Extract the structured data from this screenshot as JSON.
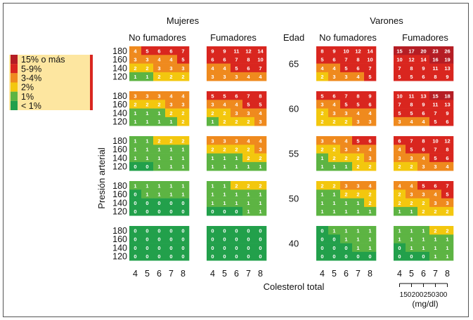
{
  "title_women": "Mujeres",
  "title_men": "Varones",
  "col_no_smoke": "No fumadores",
  "col_smoke": "Fumadores",
  "col_age": "Edad",
  "ylabel": "Presión arterial",
  "xlabel": "Colesterol total",
  "mgdl_unit": "(mg/dl)",
  "mgdl_ticks": [
    "150",
    "200",
    "250",
    "300"
  ],
  "legend": [
    {
      "label": "15% o más",
      "color": "#b51d24"
    },
    {
      "label": "5-9%",
      "color": "#d9261f"
    },
    {
      "label": "3-4%",
      "color": "#ef8a1e"
    },
    {
      "label": "2%",
      "color": "#f3c70e"
    },
    {
      "label": "1%",
      "color": "#5db443"
    },
    {
      "label": "< 1%",
      "color": "#22a04b"
    }
  ],
  "chart_data": {
    "type": "heatmap",
    "x": [
      "4",
      "5",
      "6",
      "7",
      "8"
    ],
    "y": [
      "180",
      "160",
      "140",
      "120"
    ],
    "ages": [
      "65",
      "60",
      "55",
      "50",
      "40"
    ],
    "panels": {
      "women_nonsmoker": [
        [
          [
            4,
            5,
            6,
            6,
            7
          ],
          [
            3,
            3,
            4,
            4,
            5
          ],
          [
            2,
            2,
            3,
            3,
            3
          ],
          [
            1,
            1,
            2,
            2,
            2
          ]
        ],
        [
          [
            3,
            3,
            3,
            4,
            4
          ],
          [
            2,
            2,
            2,
            3,
            3
          ],
          [
            1,
            1,
            1,
            2,
            2
          ],
          [
            1,
            1,
            1,
            1,
            2
          ]
        ],
        [
          [
            1,
            1,
            2,
            2,
            2
          ],
          [
            1,
            1,
            1,
            1,
            1
          ],
          [
            1,
            1,
            1,
            1,
            1
          ],
          [
            0,
            0,
            1,
            1,
            1
          ]
        ],
        [
          [
            1,
            1,
            1,
            1,
            1
          ],
          [
            0,
            1,
            1,
            1,
            1
          ],
          [
            0,
            0,
            0,
            0,
            0
          ],
          [
            0,
            0,
            0,
            0,
            0
          ]
        ],
        [
          [
            0,
            0,
            0,
            0,
            0
          ],
          [
            0,
            0,
            0,
            0,
            0
          ],
          [
            0,
            0,
            0,
            0,
            0
          ],
          [
            0,
            0,
            0,
            0,
            0
          ]
        ]
      ],
      "women_smoker": [
        [
          [
            9,
            9,
            11,
            12,
            14
          ],
          [
            6,
            6,
            7,
            8,
            10
          ],
          [
            4,
            4,
            5,
            6,
            7
          ],
          [
            3,
            3,
            3,
            4,
            4
          ]
        ],
        [
          [
            5,
            5,
            6,
            7,
            8
          ],
          [
            3,
            4,
            4,
            5,
            5
          ],
          [
            2,
            2,
            3,
            3,
            4
          ],
          [
            1,
            2,
            2,
            2,
            3
          ]
        ],
        [
          [
            3,
            3,
            3,
            4,
            4
          ],
          [
            2,
            2,
            2,
            2,
            3
          ],
          [
            1,
            1,
            1,
            2,
            2
          ],
          [
            1,
            1,
            1,
            1,
            1
          ]
        ],
        [
          [
            1,
            1,
            2,
            2,
            2
          ],
          [
            1,
            1,
            1,
            1,
            1
          ],
          [
            1,
            1,
            1,
            1,
            1
          ],
          [
            0,
            0,
            0,
            1,
            1
          ]
        ],
        [
          [
            0,
            0,
            0,
            0,
            0
          ],
          [
            0,
            0,
            0,
            0,
            0
          ],
          [
            0,
            0,
            0,
            0,
            0
          ],
          [
            0,
            0,
            0,
            0,
            0
          ]
        ]
      ],
      "men_nonsmoker": [
        [
          [
            8,
            9,
            10,
            12,
            14
          ],
          [
            5,
            6,
            7,
            8,
            10
          ],
          [
            4,
            4,
            5,
            6,
            7
          ],
          [
            2,
            3,
            3,
            4,
            5
          ]
        ],
        [
          [
            5,
            6,
            7,
            8,
            9
          ],
          [
            3,
            4,
            5,
            5,
            6
          ],
          [
            2,
            3,
            3,
            4,
            4
          ],
          [
            2,
            2,
            2,
            3,
            3
          ]
        ],
        [
          [
            3,
            4,
            4,
            5,
            6
          ],
          [
            2,
            2,
            3,
            3,
            4
          ],
          [
            1,
            2,
            2,
            2,
            3
          ],
          [
            1,
            1,
            1,
            2,
            2
          ]
        ],
        [
          [
            2,
            2,
            3,
            3,
            4
          ],
          [
            1,
            1,
            2,
            2,
            2
          ],
          [
            1,
            1,
            1,
            1,
            2
          ],
          [
            1,
            1,
            1,
            1,
            1
          ]
        ],
        [
          [
            0,
            1,
            1,
            1,
            1
          ],
          [
            0,
            0,
            1,
            1,
            1
          ],
          [
            0,
            0,
            0,
            1,
            1
          ],
          [
            0,
            0,
            0,
            0,
            0
          ]
        ]
      ],
      "men_smoker": [
        [
          [
            15,
            17,
            20,
            23,
            26
          ],
          [
            10,
            12,
            14,
            16,
            19
          ],
          [
            7,
            8,
            9,
            11,
            13
          ],
          [
            5,
            5,
            6,
            8,
            9
          ]
        ],
        [
          [
            10,
            11,
            13,
            15,
            18
          ],
          [
            7,
            8,
            9,
            11,
            13
          ],
          [
            5,
            5,
            6,
            7,
            9
          ],
          [
            3,
            4,
            4,
            5,
            6
          ]
        ],
        [
          [
            6,
            7,
            8,
            10,
            12
          ],
          [
            4,
            5,
            6,
            7,
            8
          ],
          [
            3,
            3,
            4,
            5,
            6
          ],
          [
            2,
            2,
            3,
            3,
            4
          ]
        ],
        [
          [
            4,
            4,
            5,
            6,
            7
          ],
          [
            2,
            3,
            3,
            4,
            5
          ],
          [
            2,
            2,
            2,
            3,
            3
          ],
          [
            1,
            1,
            2,
            2,
            2
          ]
        ],
        [
          [
            1,
            1,
            1,
            2,
            2
          ],
          [
            1,
            1,
            1,
            1,
            1
          ],
          [
            0,
            1,
            1,
            1,
            1
          ],
          [
            0,
            0,
            0,
            1,
            1
          ]
        ]
      ]
    }
  }
}
